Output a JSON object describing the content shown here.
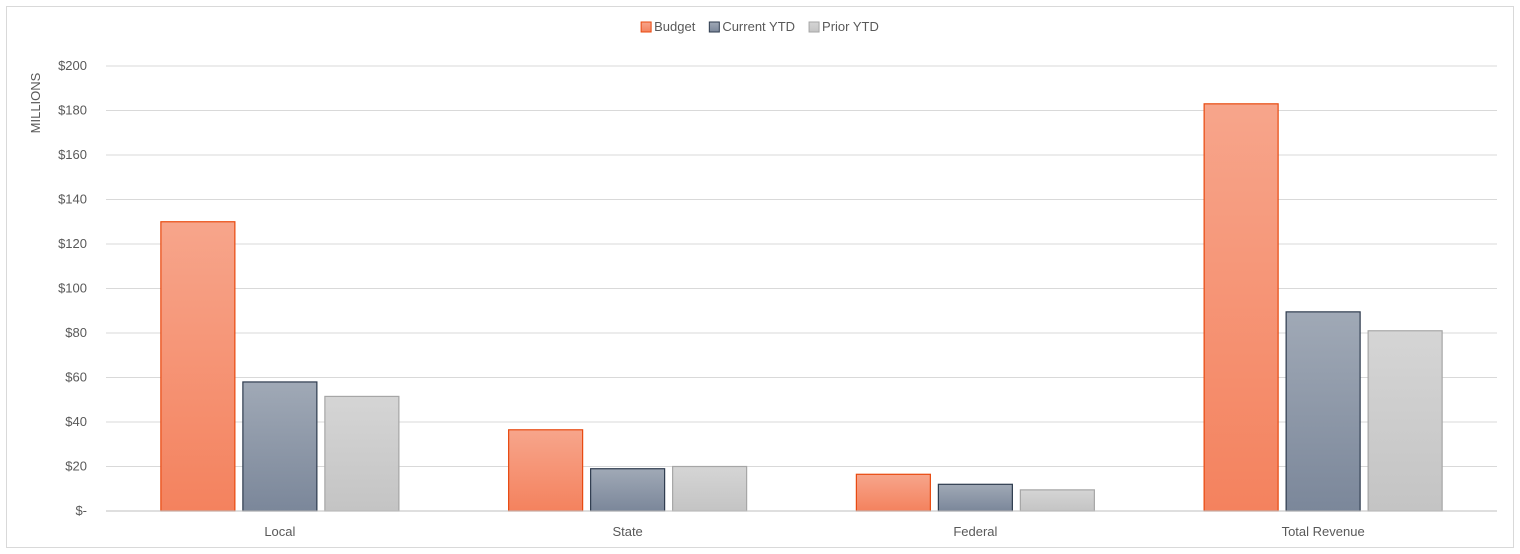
{
  "chart_data": {
    "type": "bar",
    "title": "",
    "xlabel": "",
    "ylabel": "MILLIONS",
    "categories": [
      "Local",
      "State",
      "Federal",
      "Total Revenue"
    ],
    "series": [
      {
        "name": "Budget",
        "values": [
          130,
          36.5,
          16.5,
          183
        ],
        "color": "#f4825e",
        "border": "#e8490f"
      },
      {
        "name": "Current YTD",
        "values": [
          58,
          19,
          12,
          89.5
        ],
        "color": "#7b879a",
        "border": "#2e3b4e"
      },
      {
        "name": "Prior YTD",
        "values": [
          51.5,
          20,
          9.5,
          81
        ],
        "color": "#c4c4c4",
        "border": "#a6a6a6"
      }
    ],
    "ylim": [
      0,
      200
    ],
    "yticks": [
      0,
      20,
      40,
      60,
      80,
      100,
      120,
      140,
      160,
      180,
      200
    ],
    "ytick_labels": [
      "$-",
      "$20",
      "$40",
      "$60",
      "$80",
      "$100",
      "$120",
      "$140",
      "$160",
      "$180",
      "$200"
    ],
    "grid": true,
    "legend_position": "top-center"
  }
}
